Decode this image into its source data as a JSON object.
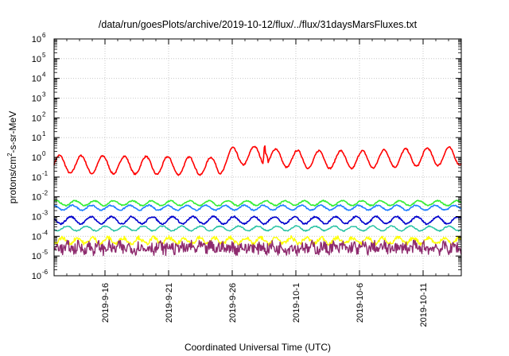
{
  "chart_data": {
    "type": "line",
    "title": "/data/run/goesPlots/archive/2019-10-12/flux/../flux/31daysMarsFluxes.txt",
    "xlabel": "Coordinated Universal Time (UTC)",
    "ylabel": "protons/cm2-s-sr-MeV",
    "ylabel_parts": {
      "base": "protons/cm",
      "sup": "2",
      "rest": "-s-sr-MeV"
    },
    "yscale": "log",
    "ylim": [
      1e-06,
      1000000.0
    ],
    "y_ticks": [
      {
        "base": "10",
        "exp": "-6"
      },
      {
        "base": "10",
        "exp": "-5"
      },
      {
        "base": "10",
        "exp": "-4"
      },
      {
        "base": "10",
        "exp": "-3"
      },
      {
        "base": "10",
        "exp": "-2"
      },
      {
        "base": "10",
        "exp": "-1"
      },
      {
        "base": "10",
        "exp": "0"
      },
      {
        "base": "10",
        "exp": "1"
      },
      {
        "base": "10",
        "exp": "2"
      },
      {
        "base": "10",
        "exp": "3"
      },
      {
        "base": "10",
        "exp": "4"
      },
      {
        "base": "10",
        "exp": "5"
      },
      {
        "base": "10",
        "exp": "6"
      }
    ],
    "xlim": [
      "2019-09-12",
      "2019-10-14"
    ],
    "x_ticks": [
      "2019-9-16",
      "2019-9-21",
      "2019-9-26",
      "2019-10-1",
      "2019-10-6",
      "2019-10-11"
    ],
    "grid": true,
    "legend": "none",
    "series": [
      {
        "color": "#ff0000",
        "level": 0.4,
        "amplitude": 0.45,
        "period_days": 1.7,
        "noise": 0.04,
        "width": 1.6,
        "trend": [
          [
            "2019-09-12",
            0.45
          ],
          [
            "2019-09-25",
            0.35
          ],
          [
            "2019-09-26",
            1.1
          ],
          [
            "2019-09-28",
            1.3
          ],
          [
            "2019-09-29",
            1.0
          ],
          [
            "2019-10-01",
            0.8
          ],
          [
            "2019-10-06",
            0.75
          ],
          [
            "2019-10-14",
            1.2
          ]
        ],
        "spike": {
          "date": "2019-09-28T12:00",
          "peak": 4.5
        }
      },
      {
        "color": "#33ee33",
        "level": 0.0048,
        "amplitude": 0.12,
        "period_days": 1.5,
        "noise": 0.03,
        "width": 1.6
      },
      {
        "color": "#1f7fff",
        "level": 0.0028,
        "amplitude": 0.12,
        "period_days": 1.5,
        "noise": 0.03,
        "width": 1.6
      },
      {
        "color": "#0000cc",
        "level": 0.00065,
        "amplitude": 0.18,
        "period_days": 1.6,
        "noise": 0.04,
        "width": 1.6
      },
      {
        "color": "#20c0a0",
        "level": 0.00025,
        "amplitude": 0.12,
        "period_days": 1.5,
        "noise": 0.03,
        "width": 1.4
      },
      {
        "color": "#ffff00",
        "level": 6e-05,
        "amplitude": 0.15,
        "period_days": 1.2,
        "noise": 0.1,
        "width": 1.4
      },
      {
        "color": "#8e2b6e",
        "level": 2.6e-05,
        "amplitude": 0.1,
        "period_days": 0.8,
        "noise": 0.3,
        "width": 1.4
      }
    ]
  }
}
